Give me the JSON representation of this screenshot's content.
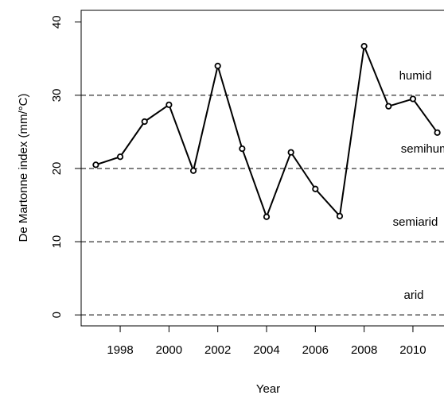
{
  "chart_data": {
    "type": "line",
    "x_label": "Year",
    "y_label": "De Martonne index (mm/°C)",
    "x": [
      1997,
      1998,
      1999,
      2000,
      2001,
      2002,
      2003,
      2004,
      2005,
      2006,
      2007,
      2008,
      2009,
      2010,
      2011
    ],
    "values": [
      20.5,
      21.6,
      26.4,
      28.7,
      19.7,
      34.0,
      22.7,
      13.4,
      22.2,
      17.2,
      13.5,
      36.7,
      28.5,
      29.5,
      24.9
    ],
    "color": "#000000",
    "xlim": [
      1996.4,
      2011.6
    ],
    "ylim": [
      -1.5,
      41.6
    ],
    "xticks": [
      1998,
      2000,
      2002,
      2004,
      2006,
      2008,
      2010
    ],
    "yticks": [
      0,
      10,
      20,
      30,
      40
    ],
    "thresholds": [
      {
        "value": 0,
        "label": "arid"
      },
      {
        "value": 10,
        "label": "semiarid"
      },
      {
        "value": 20,
        "label": "semihumid"
      },
      {
        "value": 30,
        "label": "humid"
      }
    ]
  }
}
